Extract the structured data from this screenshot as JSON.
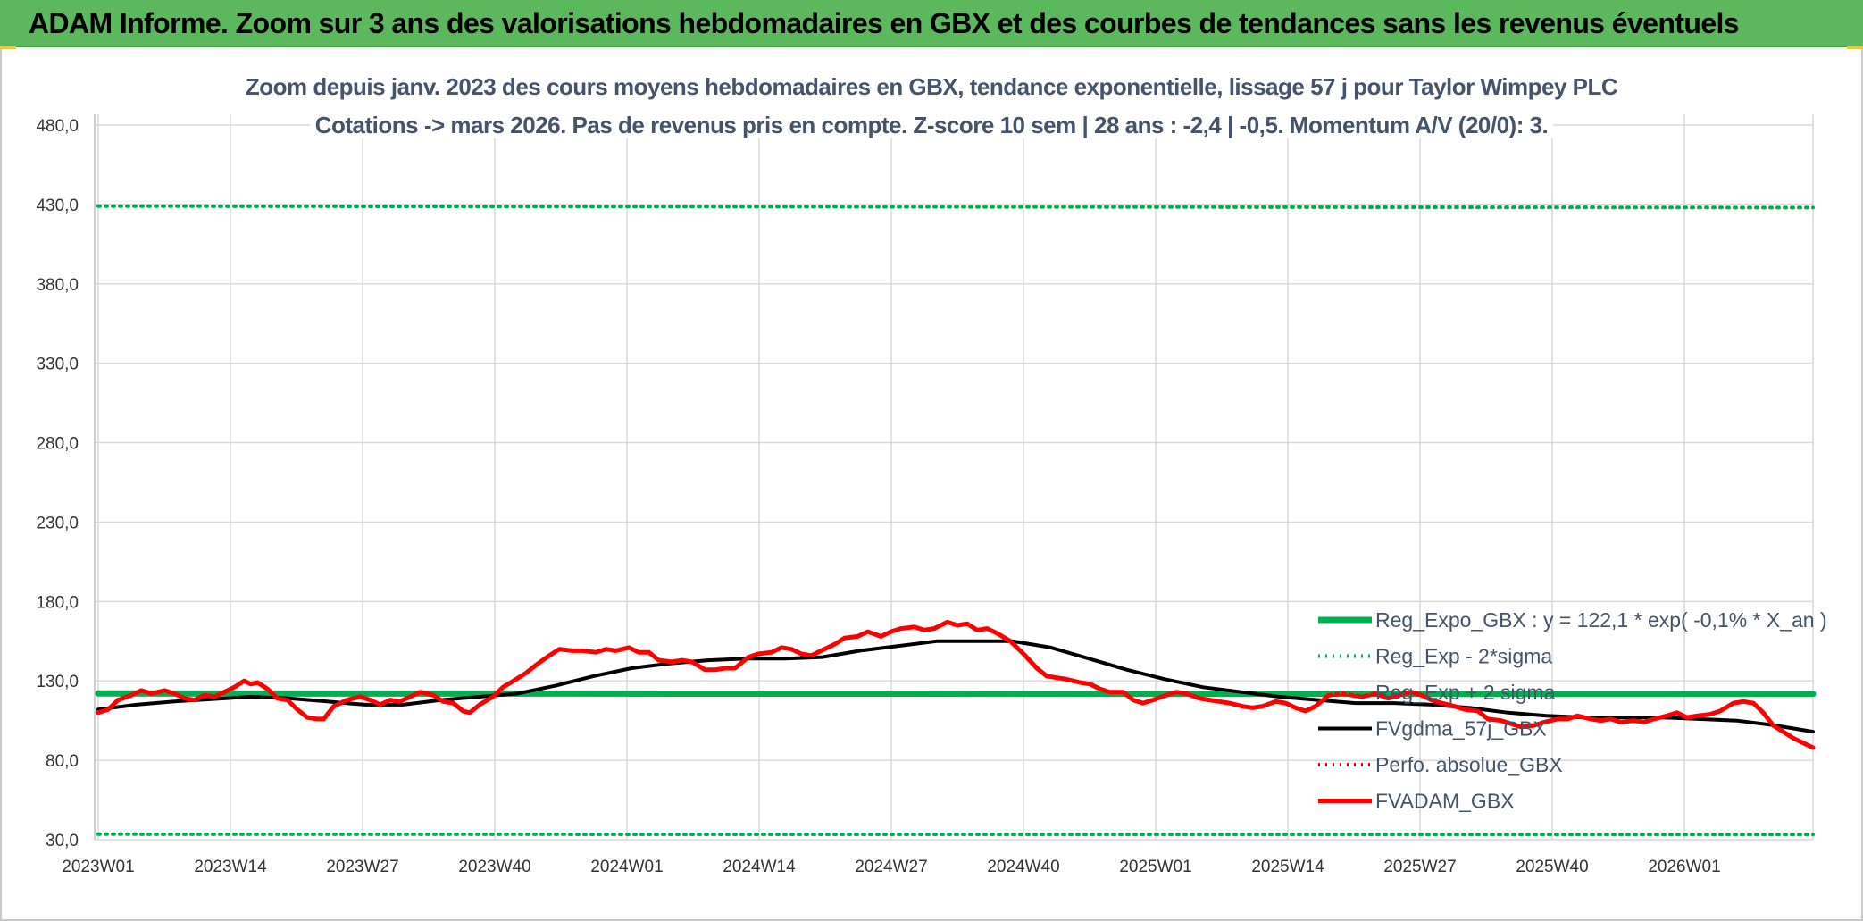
{
  "header": {
    "title": "ADAM Informe. Zoom sur 3 ans des valorisations hebdomadaires en GBX et des courbes de tendances sans les revenus éventuels"
  },
  "colors": {
    "header_bg": "#5cb85c",
    "reg_expo": "#00b050",
    "fvgdma": "#000000",
    "perfo": "#ff0000",
    "fvadam": "#ff0000"
  },
  "chart_data": {
    "type": "line",
    "title": "Zoom depuis janv. 2023 des cours moyens hebdomadaires en GBX, tendance exponentielle, lissage 57 j pour Taylor Wimpey PLC",
    "subtitle": "Cotations -> mars 2026. Pas de revenus pris en compte. Z-score 10 sem | 28 ans : -2,4 | -0,5. Momentum A/V (20/0): 3.",
    "y_ticks": [
      30,
      80,
      130,
      180,
      230,
      280,
      330,
      380,
      430,
      480
    ],
    "y_tick_labels": [
      "30,0",
      "80,0",
      "130,0",
      "180,0",
      "230,0",
      "280,0",
      "330,0",
      "380,0",
      "430,0",
      "480,0"
    ],
    "ylim": [
      30,
      480
    ],
    "grid": true,
    "legend_position": "bottom-right",
    "x_ticks": [
      "2023W01",
      "2023W14",
      "2023W27",
      "2023W40",
      "2024W01",
      "2024W14",
      "2024W27",
      "2024W40",
      "2025W01",
      "2025W14",
      "2025W27",
      "2025W40",
      "2026W01"
    ],
    "n_weeks": 170,
    "series": [
      {
        "name": "Reg_Expo_GBX : y = 122,1 * exp( -0,1% *  X_an )",
        "style": "solid-thick",
        "color": "#00b050",
        "points": [
          [
            0,
            122.1
          ],
          [
            169,
            121.8
          ]
        ]
      },
      {
        "name": "Reg_Exp - 2*sigma",
        "style": "dotted",
        "color": "#00b050",
        "points": [
          [
            0,
            33.5
          ],
          [
            169,
            33.2
          ]
        ]
      },
      {
        "name": "Reg_Exp + 2 sigma",
        "style": "dotted",
        "color": "#00b050",
        "points": [
          [
            0,
            429
          ],
          [
            169,
            428
          ]
        ]
      },
      {
        "name": "FVgdma_57j_GBX",
        "style": "solid",
        "color": "#000000",
        "points": [
          [
            0,
            112
          ],
          [
            5,
            115
          ],
          [
            10,
            117
          ],
          [
            20,
            120
          ],
          [
            25,
            119
          ],
          [
            30,
            117
          ],
          [
            35,
            115
          ],
          [
            40,
            115
          ],
          [
            45,
            118
          ],
          [
            50,
            120
          ],
          [
            55,
            122
          ],
          [
            60,
            127
          ],
          [
            65,
            133
          ],
          [
            70,
            138
          ],
          [
            75,
            141
          ],
          [
            80,
            143
          ],
          [
            85,
            144
          ],
          [
            90,
            144
          ],
          [
            95,
            145
          ],
          [
            100,
            149
          ],
          [
            105,
            152
          ],
          [
            110,
            155
          ],
          [
            115,
            155
          ],
          [
            120,
            155
          ],
          [
            125,
            151
          ],
          [
            130,
            144
          ],
          [
            135,
            137
          ],
          [
            140,
            131
          ],
          [
            145,
            126
          ],
          [
            150,
            123
          ],
          [
            155,
            120
          ],
          [
            160,
            118
          ],
          [
            165,
            116
          ],
          [
            170,
            116
          ],
          [
            175,
            115
          ],
          [
            180,
            113
          ],
          [
            185,
            110
          ],
          [
            190,
            108
          ],
          [
            195,
            107
          ],
          [
            200,
            107
          ],
          [
            205,
            107
          ],
          [
            210,
            106
          ],
          [
            215,
            105
          ],
          [
            220,
            102
          ],
          [
            225,
            98
          ]
        ]
      },
      {
        "name": "Perfo. absolue_GBX",
        "style": "dotted",
        "color": "#ff0000",
        "points": []
      },
      {
        "name": "FVADAM_GBX",
        "style": "solid-thick",
        "color": "#ff0000",
        "points": [
          [
            0,
            110
          ],
          [
            3,
            112
          ],
          [
            6,
            118
          ],
          [
            10,
            121
          ],
          [
            13,
            124
          ],
          [
            16,
            122
          ],
          [
            20,
            124
          ],
          [
            23,
            122
          ],
          [
            26,
            119
          ],
          [
            29,
            118
          ],
          [
            32,
            121
          ],
          [
            35,
            120
          ],
          [
            38,
            123
          ],
          [
            41,
            126
          ],
          [
            44,
            130
          ],
          [
            46,
            128
          ],
          [
            48,
            129
          ],
          [
            51,
            125
          ],
          [
            54,
            119
          ],
          [
            57,
            118
          ],
          [
            60,
            112
          ],
          [
            63,
            107
          ],
          [
            66,
            106
          ],
          [
            68,
            106
          ],
          [
            71,
            114
          ],
          [
            75,
            118
          ],
          [
            79,
            120
          ],
          [
            82,
            118
          ],
          [
            85,
            115
          ],
          [
            88,
            118
          ],
          [
            91,
            117
          ],
          [
            94,
            120
          ],
          [
            97,
            123
          ],
          [
            101,
            121
          ],
          [
            104,
            117
          ],
          [
            107,
            116
          ],
          [
            110,
            111
          ],
          [
            112,
            110
          ],
          [
            115,
            115
          ],
          [
            119,
            120
          ],
          [
            122,
            126
          ],
          [
            126,
            131
          ],
          [
            129,
            135
          ],
          [
            132,
            140
          ],
          [
            136,
            146
          ],
          [
            139,
            150
          ],
          [
            143,
            149
          ],
          [
            146,
            149
          ],
          [
            150,
            148
          ],
          [
            153,
            150
          ],
          [
            156,
            149
          ],
          [
            160,
            151
          ],
          [
            163,
            148
          ],
          [
            166,
            148
          ],
          [
            169,
            143
          ],
          [
            173,
            142
          ],
          [
            176,
            143
          ],
          [
            179,
            142
          ],
          [
            183,
            137
          ],
          [
            186,
            137
          ],
          [
            189,
            138
          ],
          [
            192,
            138
          ],
          [
            196,
            145
          ],
          [
            199,
            147
          ],
          [
            203,
            148
          ],
          [
            206,
            151
          ],
          [
            209,
            150
          ],
          [
            212,
            147
          ],
          [
            215,
            146
          ],
          [
            218,
            149
          ],
          [
            222,
            153
          ],
          [
            225,
            157
          ],
          [
            229,
            158
          ],
          [
            232,
            161
          ],
          [
            236,
            158
          ],
          [
            239,
            161
          ],
          [
            242,
            163
          ],
          [
            246,
            164
          ],
          [
            249,
            162
          ],
          [
            252,
            163
          ],
          [
            256,
            167
          ],
          [
            259,
            165
          ],
          [
            262,
            166
          ],
          [
            265,
            162
          ],
          [
            268,
            163
          ],
          [
            271,
            160
          ],
          [
            275,
            155
          ],
          [
            279,
            147
          ],
          [
            283,
            138
          ],
          [
            286,
            133
          ],
          [
            289,
            132
          ],
          [
            292,
            131
          ],
          [
            296,
            129
          ],
          [
            299,
            128
          ],
          [
            302,
            125
          ],
          [
            305,
            123
          ],
          [
            309,
            123
          ],
          [
            312,
            118
          ],
          [
            315,
            116
          ],
          [
            318,
            118
          ],
          [
            322,
            121
          ],
          [
            325,
            123
          ],
          [
            328,
            122
          ],
          [
            332,
            119
          ],
          [
            335,
            118
          ],
          [
            338,
            117
          ],
          [
            341,
            116
          ],
          [
            345,
            114
          ],
          [
            348,
            113
          ],
          [
            351,
            114
          ],
          [
            355,
            117
          ],
          [
            358,
            116
          ],
          [
            361,
            113
          ],
          [
            364,
            111
          ],
          [
            367,
            114
          ],
          [
            371,
            121
          ],
          [
            375,
            122
          ],
          [
            378,
            121
          ],
          [
            381,
            120
          ],
          [
            385,
            122
          ],
          [
            389,
            119
          ],
          [
            392,
            121
          ],
          [
            396,
            123
          ],
          [
            399,
            121
          ],
          [
            402,
            118
          ],
          [
            405,
            116
          ],
          [
            409,
            114
          ],
          [
            412,
            112
          ],
          [
            416,
            111
          ],
          [
            419,
            106
          ],
          [
            423,
            105
          ],
          [
            426,
            103
          ],
          [
            429,
            101
          ],
          [
            433,
            102
          ],
          [
            436,
            104
          ],
          [
            440,
            106
          ],
          [
            443,
            106
          ],
          [
            446,
            108
          ],
          [
            450,
            106
          ],
          [
            453,
            105
          ],
          [
            456,
            106
          ],
          [
            459,
            104
          ],
          [
            463,
            105
          ],
          [
            466,
            104
          ],
          [
            469,
            106
          ],
          [
            473,
            108
          ],
          [
            476,
            110
          ],
          [
            479,
            107
          ],
          [
            482,
            108
          ],
          [
            486,
            109
          ],
          [
            489,
            111
          ],
          [
            493,
            116
          ],
          [
            496,
            117
          ],
          [
            499,
            116
          ],
          [
            502,
            110
          ],
          [
            505,
            102
          ],
          [
            508,
            98
          ],
          [
            511,
            94
          ],
          [
            514,
            91
          ],
          [
            517,
            88
          ]
        ]
      }
    ]
  }
}
